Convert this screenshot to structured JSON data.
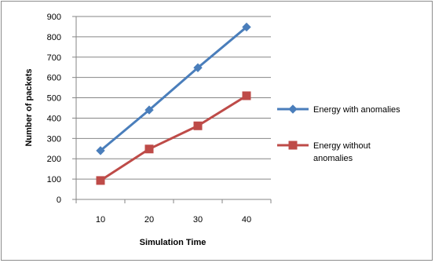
{
  "chart_data": {
    "type": "line",
    "x": [
      10,
      20,
      30,
      40
    ],
    "xlabel": "Simulation Time",
    "ylabel": "Number of packets",
    "ylim": [
      0,
      900
    ],
    "yticks": [
      0,
      100,
      200,
      300,
      400,
      500,
      600,
      700,
      800,
      900
    ],
    "grid": "horizontal",
    "legend_position": "right",
    "series": [
      {
        "name": "Energy with anomalies",
        "name_lines": [
          "Energy with anomalies"
        ],
        "values": [
          240,
          440,
          648,
          848
        ],
        "color": "#4a7ebb",
        "marker": "diamond"
      },
      {
        "name": "Energy without anomalies",
        "name_lines": [
          "Energy without",
          "anomalies"
        ],
        "values": [
          93,
          248,
          362,
          510
        ],
        "color": "#be4b48",
        "marker": "square"
      }
    ]
  }
}
